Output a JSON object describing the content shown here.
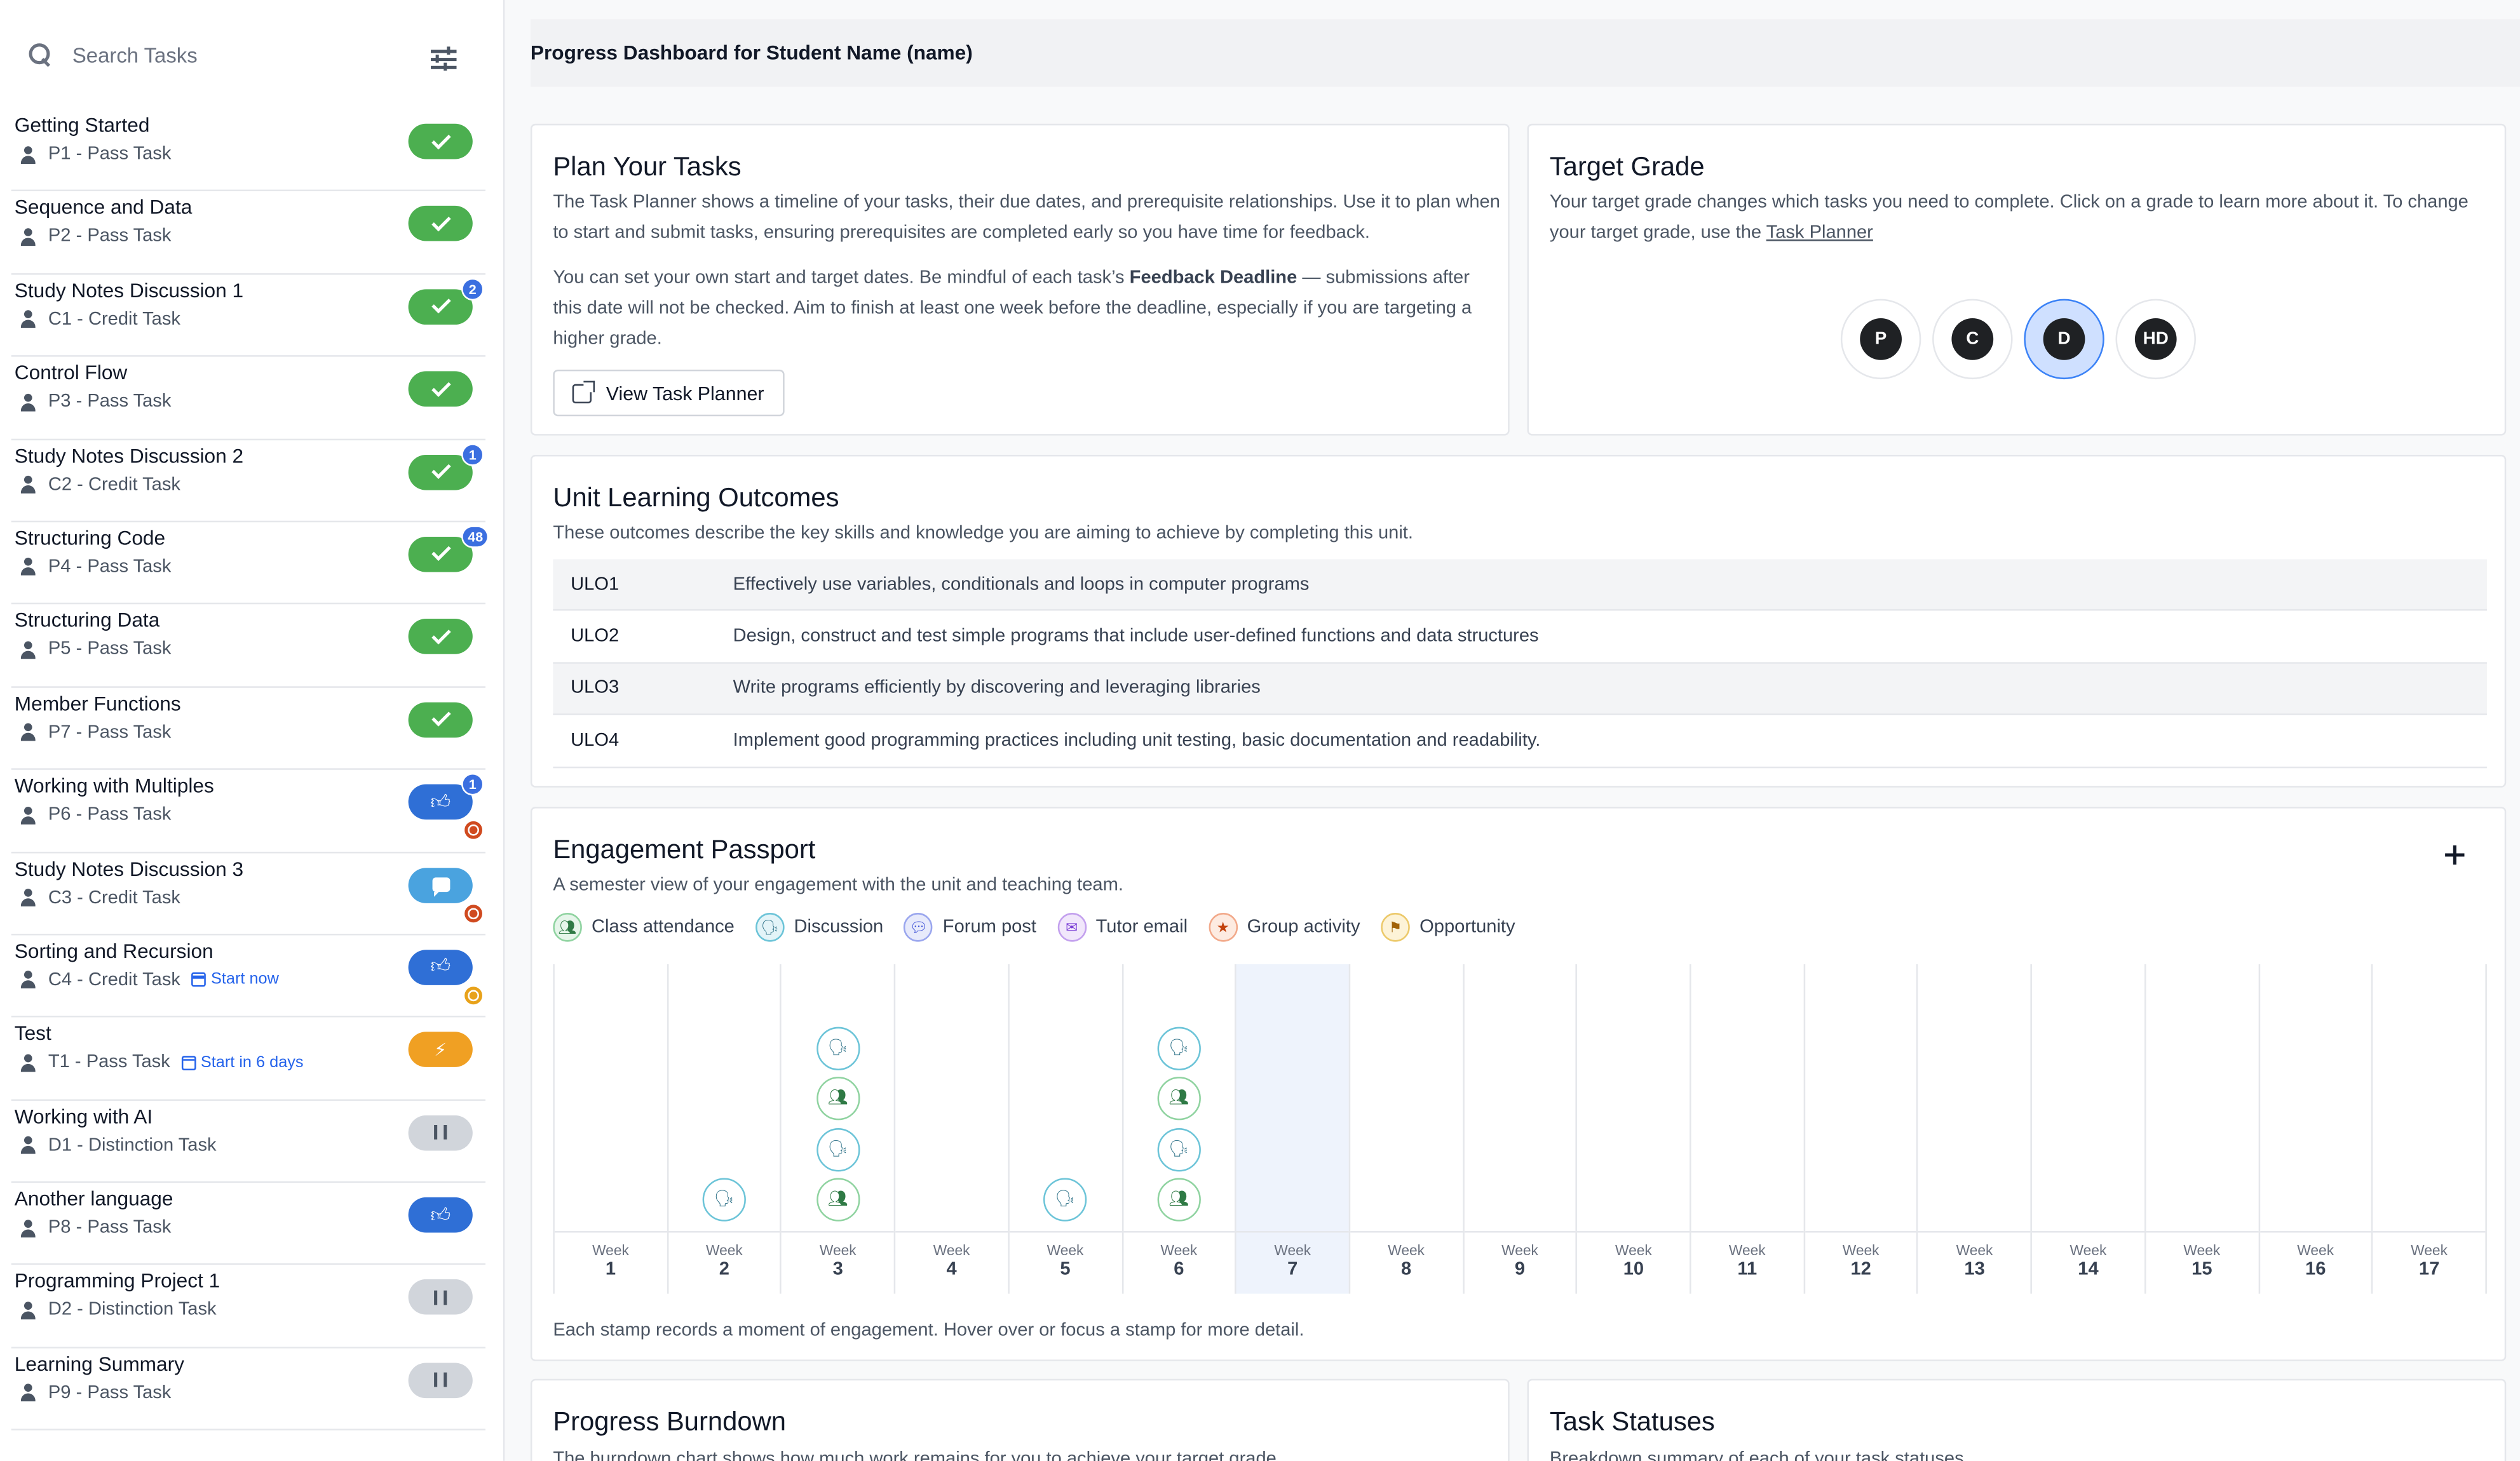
{
  "search": {
    "placeholder": "Search Tasks",
    "icon": "search-icon",
    "filter_icon": "filter-icon"
  },
  "tasks": [
    {
      "name": "Getting Started",
      "code": "P1 - Pass Task",
      "status": "complete"
    },
    {
      "name": "Sequence and Data",
      "code": "P2 - Pass Task",
      "status": "complete"
    },
    {
      "name": "Study Notes Discussion 1",
      "code": "C1 - Credit Task",
      "status": "complete",
      "badge": "2"
    },
    {
      "name": "Control Flow",
      "code": "P3 - Pass Task",
      "status": "complete"
    },
    {
      "name": "Study Notes Discussion 2",
      "code": "C2 - Credit Task",
      "status": "complete",
      "badge": "1"
    },
    {
      "name": "Structuring Code",
      "code": "P4 - Pass Task",
      "status": "complete",
      "badge": "48"
    },
    {
      "name": "Structuring Data",
      "code": "P5 - Pass Task",
      "status": "complete"
    },
    {
      "name": "Member Functions",
      "code": "P7 - Pass Task",
      "status": "complete"
    },
    {
      "name": "Working with Multiples",
      "code": "P6 - Pass Task",
      "status": "ready-for-feedback",
      "badge": "1",
      "overdue": true
    },
    {
      "name": "Study Notes Discussion 3",
      "code": "C3 - Credit Task",
      "status": "discuss",
      "overdue": true
    },
    {
      "name": "Sorting and Recursion",
      "code": "C4 - Credit Task",
      "status": "ready-for-feedback",
      "due_soon": true,
      "note": "Start now"
    },
    {
      "name": "Test",
      "code": "T1 - Pass Task",
      "status": "working-on-it",
      "note": "Start in 6 days"
    },
    {
      "name": "Working with AI",
      "code": "D1 - Distinction Task",
      "status": "not-started"
    },
    {
      "name": "Another language",
      "code": "P8 - Pass Task",
      "status": "ready-for-feedback"
    },
    {
      "name": "Programming Project 1",
      "code": "D2 - Distinction Task",
      "status": "not-started"
    },
    {
      "name": "Learning Summary",
      "code": "P9 - Pass Task",
      "status": "not-started"
    }
  ],
  "header": {
    "title": "Progress Dashboard for Student Name (name)"
  },
  "plan": {
    "title": "Plan Your Tasks",
    "p1": "The Task Planner shows a timeline of your tasks, their due dates, and prerequisite relationships. Use it to plan when to start and submit tasks, ensuring prerequisites are completed early so you have time for feedback.",
    "p2_before": "You can set your own start and target dates. Be mindful of each task’s ",
    "p2_bold": "Feedback Deadline",
    "p2_after": " — submissions after this date will not be checked. Aim to finish at least one week before the deadline, especially if you are targeting a higher grade.",
    "button": "View Task Planner"
  },
  "target": {
    "title": "Target Grade",
    "desc_before": "Your target grade changes which tasks you need to complete. Click on a grade to learn more about it. To change your target grade, use the ",
    "desc_link": "Task Planner",
    "grades": [
      "P",
      "C",
      "D",
      "HD"
    ],
    "selected": "D"
  },
  "ulo": {
    "title": "Unit Learning Outcomes",
    "desc": "These outcomes describe the key skills and knowledge you are aiming to achieve by completing this unit.",
    "rows": [
      {
        "code": "ULO1",
        "text": "Effectively use variables, conditionals and loops in computer programs"
      },
      {
        "code": "ULO2",
        "text": "Design, construct and test simple programs that include user-defined functions and data structures"
      },
      {
        "code": "ULO3",
        "text": "Write programs efficiently by discovering and leveraging libraries"
      },
      {
        "code": "ULO4",
        "text": "Implement good programming practices including unit testing, basic documentation and readability."
      }
    ]
  },
  "passport": {
    "title": "Engagement Passport",
    "desc": "A semester view of your engagement with the unit and teaching team.",
    "legend": [
      {
        "label": "Class attendance",
        "color": "#2f7a45",
        "bg": "#e6f5ea",
        "border": "#8fd3a0"
      },
      {
        "label": "Discussion",
        "color": "#2a6f86",
        "bg": "#e3f4f8",
        "border": "#6cc4d8"
      },
      {
        "label": "Forum post",
        "color": "#3b4fd6",
        "bg": "#e7eafb",
        "border": "#9aa6ee"
      },
      {
        "label": "Tutor email",
        "color": "#7b3fd6",
        "bg": "#f1e7fb",
        "border": "#c3a0ee"
      },
      {
        "label": "Group activity",
        "color": "#c2410c",
        "bg": "#fdebe1",
        "border": "#f2a98a"
      },
      {
        "label": "Opportunity",
        "color": "#a16207",
        "bg": "#fdf3d7",
        "border": "#ecc96a"
      }
    ],
    "week_word": "Week",
    "weeks": [
      "1",
      "2",
      "3",
      "4",
      "5",
      "6",
      "7",
      "8",
      "9",
      "10",
      "11",
      "12",
      "13",
      "14",
      "15",
      "16",
      "17"
    ],
    "current_week": "7",
    "stamps": {
      "2": [
        "discussion"
      ],
      "3": [
        "attendance",
        "discussion",
        "attendance",
        "discussion"
      ],
      "5": [
        "discussion"
      ],
      "6": [
        "attendance",
        "discussion",
        "attendance",
        "discussion"
      ]
    },
    "footer": "Each stamp records a moment of engagement. Hover over or focus a stamp for more detail."
  },
  "burndown": {
    "title": "Progress Burndown",
    "desc": "The burndown chart shows how much work remains for you to achieve your target grade."
  },
  "statuses": {
    "title": "Task Statuses",
    "desc": "Breakdown summary of each of your task statuses."
  }
}
